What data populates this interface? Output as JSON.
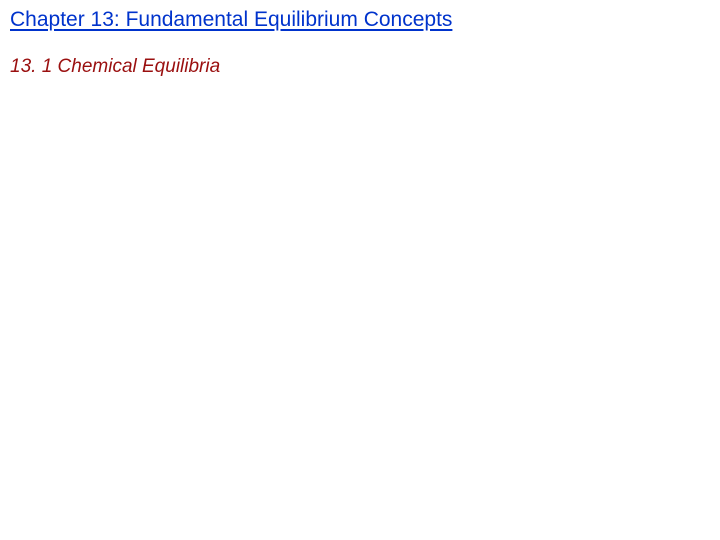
{
  "chapter": {
    "title": "Chapter 13: Fundamental Equilibrium Concepts",
    "title_color": "#0033cc",
    "title_fontsize": 21,
    "underline_color": "#0033cc"
  },
  "section": {
    "title": "13. 1 Chemical Equilibria",
    "title_color": "#9a0f0f",
    "title_fontsize": 19
  },
  "background_color": "#ffffff"
}
